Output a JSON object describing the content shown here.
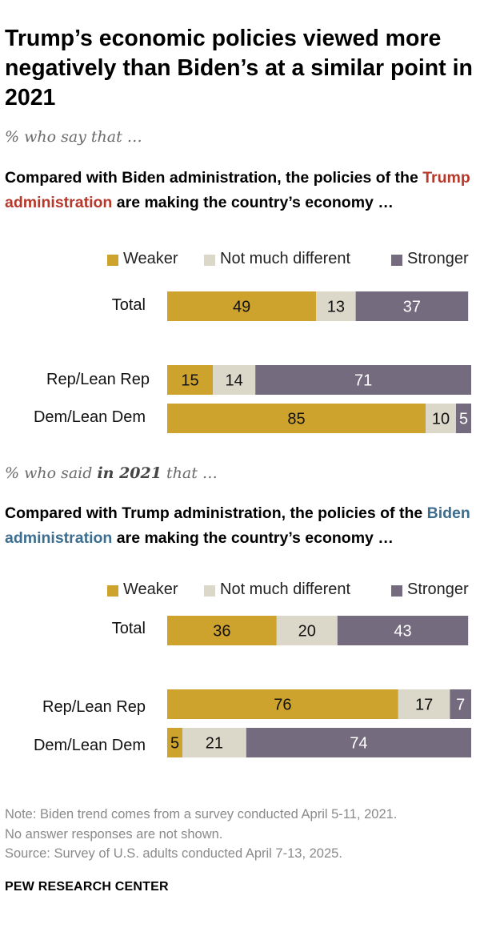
{
  "title": "Trump’s economic policies viewed more negatively than Biden’s at a similar point in 2021",
  "panel1": {
    "subtitle": "% who say that …",
    "heading_pre": "Compared with Biden administration, the policies of the ",
    "heading_highlight": "Trump administration",
    "heading_post": " are making the country’s economy …"
  },
  "panel2": {
    "subtitle_pre": "% who said ",
    "subtitle_bold": "in 2021",
    "subtitle_post": " that …",
    "heading_pre": "Compared with Trump administration, the policies of the ",
    "heading_highlight": "Biden administration",
    "heading_post": " are making the country’s economy …"
  },
  "legend": [
    "Weaker",
    "Not much different",
    "Stronger"
  ],
  "colors": {
    "weaker": "#cda32e",
    "not_much_different": "#dcd8c9",
    "stronger": "#756b7f",
    "trump": "#b5382a",
    "biden": "#3c6e8f"
  },
  "chart_data": [
    {
      "type": "bar",
      "orientation": "horizontal",
      "stacked": true,
      "title": "Compared with Biden administration, the policies of the Trump administration are making the country’s economy …",
      "categories": [
        "Total",
        "Rep/Lean Rep",
        "Dem/Lean Dem"
      ],
      "series": [
        {
          "name": "Weaker",
          "values": [
            49,
            15,
            85
          ]
        },
        {
          "name": "Not much different",
          "values": [
            13,
            14,
            10
          ]
        },
        {
          "name": "Stronger",
          "values": [
            37,
            71,
            5
          ]
        }
      ],
      "unit": "%",
      "xlim": [
        0,
        100
      ]
    },
    {
      "type": "bar",
      "orientation": "horizontal",
      "stacked": true,
      "title": "Compared with Trump administration, the policies of the Biden administration are making the country’s economy …",
      "categories": [
        "Total",
        "Rep/Lean Rep",
        "Dem/Lean Dem"
      ],
      "series": [
        {
          "name": "Weaker",
          "values": [
            36,
            76,
            5
          ]
        },
        {
          "name": "Not much different",
          "values": [
            20,
            17,
            21
          ]
        },
        {
          "name": "Stronger",
          "values": [
            43,
            7,
            74
          ]
        }
      ],
      "unit": "%",
      "xlim": [
        0,
        100
      ]
    }
  ],
  "notes": [
    "Note: Biden trend comes from a survey conducted April 5-11, 2021.",
    "No answer responses are not shown.",
    "Source: Survey of U.S. adults conducted April 7-13, 2025."
  ],
  "brand": "PEW RESEARCH CENTER"
}
